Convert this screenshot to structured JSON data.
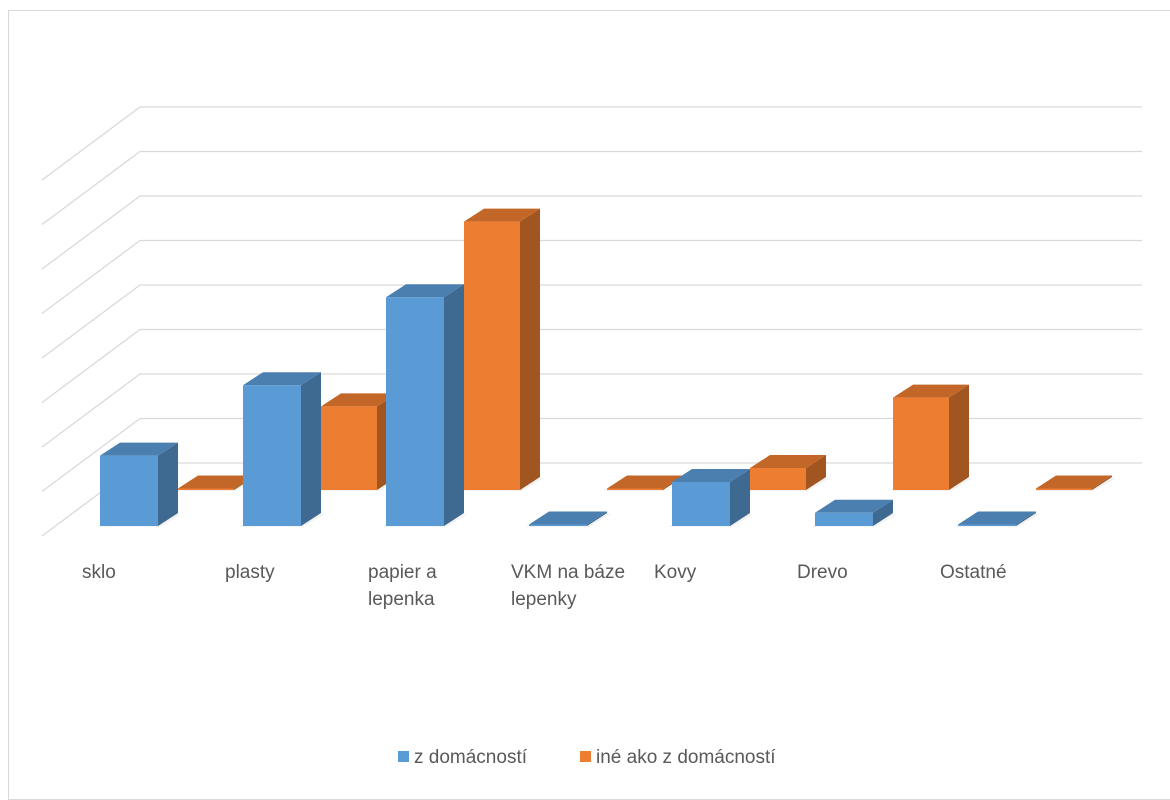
{
  "chart_data": {
    "type": "bar",
    "style": "3d-clustered-column",
    "title": "",
    "xlabel": "",
    "ylabel": "",
    "ylim": [
      0,
      8
    ],
    "grid": true,
    "legend_position": "bottom",
    "categories": [
      "sklo",
      "plasty",
      "papier a lepenka",
      "VKM na báze lepenky",
      "Kovy",
      "Drevo",
      "Ostatné"
    ],
    "category_lines": [
      [
        "sklo"
      ],
      [
        "plasty"
      ],
      [
        "papier a",
        "lepenka"
      ],
      [
        "VKM na báze",
        "lepenky"
      ],
      [
        "Kovy"
      ],
      [
        "Drevo"
      ],
      [
        "Ostatné"
      ]
    ],
    "series": [
      {
        "name": "z domácností",
        "color": "#5B9BD5",
        "values": [
          1.6,
          3.2,
          5.2,
          0,
          1.0,
          0.3,
          0
        ]
      },
      {
        "name": "iné ako z domácností",
        "color": "#ED7D31",
        "values": [
          0,
          1.9,
          6.1,
          0,
          0.5,
          2.1,
          0
        ]
      }
    ]
  }
}
